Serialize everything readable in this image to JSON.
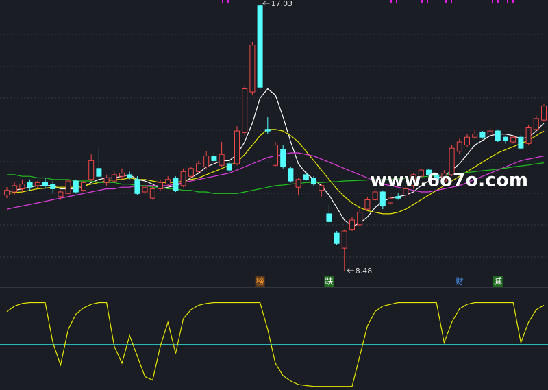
{
  "watermark": "www.6o7o.com",
  "chart_data": [
    {
      "type": "candlestick",
      "ylim": [
        8.04,
        17.14
      ],
      "up_color": "#f04848",
      "down_color": "#54ffff",
      "open": [
        10.9,
        11.0,
        11.1,
        11.3,
        11.2,
        11.3,
        11.25,
        10.85,
        10.95,
        11.35,
        11.05,
        11.4,
        11.75,
        11.3,
        11.35,
        11.5,
        11.55,
        11.4,
        11.0,
        10.8,
        11.1,
        11.25,
        11.45,
        11.2,
        11.5,
        11.65,
        11.8,
        12.15,
        11.85,
        11.9,
        11.9,
        12.9,
        14.2,
        16.95,
        13.0,
        11.85,
        12.35,
        11.75,
        11.15,
        11.55,
        11.45,
        11.05,
        10.3,
        9.68,
        9.2,
        9.8,
        9.95,
        10.45,
        10.75,
        11.0,
        10.65,
        10.85,
        10.9,
        11.2,
        11.5,
        11.7,
        11.55,
        11.35,
        11.55,
        12.3,
        12.5,
        12.75,
        12.9,
        12.85,
        12.95,
        12.75,
        12.6,
        12.75,
        12.55,
        13.0,
        13.3
      ],
      "high": [
        11.15,
        11.3,
        11.4,
        11.4,
        11.35,
        11.45,
        11.35,
        11.05,
        11.45,
        11.4,
        11.35,
        12.2,
        12.4,
        11.55,
        11.65,
        11.75,
        11.65,
        11.5,
        11.2,
        11.2,
        11.4,
        11.5,
        11.5,
        11.75,
        11.8,
        12.0,
        12.3,
        12.25,
        12.6,
        11.95,
        13.1,
        14.4,
        15.8,
        17.03,
        13.4,
        12.6,
        12.5,
        11.8,
        11.45,
        11.65,
        11.5,
        11.25,
        10.6,
        9.75,
        9.8,
        10.2,
        10.45,
        10.85,
        11.1,
        11.05,
        10.85,
        10.95,
        11.2,
        11.6,
        11.75,
        11.75,
        11.6,
        11.7,
        12.5,
        12.7,
        12.85,
        13.0,
        12.95,
        13.1,
        13.0,
        12.8,
        12.8,
        12.85,
        13.15,
        13.45,
        13.8
      ],
      "low": [
        10.8,
        10.9,
        11.0,
        11.05,
        11.1,
        11.1,
        10.95,
        10.75,
        10.9,
        10.95,
        11.0,
        11.35,
        11.4,
        11.2,
        11.3,
        11.4,
        11.4,
        10.9,
        10.9,
        10.75,
        11.05,
        11.2,
        11.0,
        11.15,
        11.45,
        11.6,
        11.75,
        11.9,
        11.8,
        11.65,
        11.85,
        12.8,
        14.1,
        14.2,
        12.85,
        11.8,
        11.75,
        11.3,
        10.9,
        11.35,
        11.2,
        10.85,
        10.0,
        9.3,
        8.48,
        9.75,
        9.9,
        10.4,
        10.7,
        10.45,
        10.6,
        10.75,
        10.8,
        11.1,
        11.45,
        11.5,
        11.35,
        11.3,
        11.5,
        12.2,
        12.45,
        12.7,
        12.7,
        12.8,
        12.6,
        12.55,
        12.55,
        12.35,
        12.5,
        12.95,
        13.25
      ],
      "close": [
        11.05,
        11.2,
        11.25,
        11.15,
        11.3,
        11.2,
        11.1,
        11.0,
        11.35,
        11.0,
        11.3,
        12.0,
        11.5,
        11.45,
        11.55,
        11.6,
        11.45,
        10.95,
        11.15,
        11.1,
        11.3,
        11.4,
        11.05,
        11.65,
        11.75,
        11.9,
        12.15,
        12.0,
        12.2,
        11.7,
        12.95,
        14.3,
        15.7,
        14.35,
        12.95,
        12.5,
        11.8,
        11.35,
        11.4,
        11.4,
        11.25,
        11.2,
        10.05,
        9.35,
        9.75,
        10.1,
        10.35,
        10.75,
        11.0,
        10.55,
        10.8,
        10.8,
        11.1,
        11.55,
        11.7,
        11.55,
        11.4,
        11.6,
        12.4,
        12.6,
        12.75,
        12.85,
        12.75,
        12.95,
        12.65,
        12.65,
        12.75,
        12.4,
        13.05,
        13.35,
        13.75
      ],
      "lines": [
        {
          "color": "#ffffff",
          "values": [
            11.0,
            11.05,
            11.1,
            11.15,
            11.2,
            11.2,
            11.2,
            11.1,
            11.1,
            11.1,
            11.15,
            11.3,
            11.4,
            11.45,
            11.45,
            11.5,
            11.55,
            11.4,
            11.35,
            11.25,
            11.1,
            11.15,
            11.2,
            11.3,
            11.45,
            11.6,
            11.8,
            11.9,
            12.0,
            12.0,
            12.2,
            12.6,
            13.2,
            14.0,
            14.3,
            14.1,
            13.4,
            12.6,
            11.9,
            11.6,
            11.4,
            11.2,
            10.9,
            10.5,
            10.1,
            9.9,
            10.0,
            10.2,
            10.5,
            10.7,
            10.8,
            10.85,
            10.9,
            11.0,
            11.2,
            11.35,
            11.45,
            11.5,
            11.7,
            11.9,
            12.2,
            12.5,
            12.65,
            12.8,
            12.85,
            12.85,
            12.8,
            12.7,
            12.75,
            12.95,
            13.2
          ]
        },
        {
          "color": "#e8e800",
          "values": [
            10.95,
            10.98,
            11.0,
            11.05,
            11.1,
            11.12,
            11.15,
            11.15,
            11.15,
            11.15,
            11.2,
            11.25,
            11.3,
            11.35,
            11.4,
            11.4,
            11.45,
            11.4,
            11.4,
            11.35,
            11.3,
            11.3,
            11.3,
            11.35,
            11.4,
            11.45,
            11.55,
            11.65,
            11.75,
            11.85,
            11.95,
            12.2,
            12.5,
            12.8,
            13.0,
            13.0,
            12.95,
            12.8,
            12.6,
            12.3,
            12.0,
            11.7,
            11.4,
            11.1,
            10.85,
            10.65,
            10.5,
            10.4,
            10.35,
            10.3,
            10.3,
            10.35,
            10.45,
            10.6,
            10.75,
            10.9,
            11.05,
            11.2,
            11.35,
            11.5,
            11.65,
            11.8,
            11.95,
            12.1,
            12.25,
            12.35,
            12.45,
            12.55,
            12.65,
            12.8,
            12.95
          ]
        },
        {
          "color": "#e040e0",
          "values": [
            10.45,
            10.5,
            10.55,
            10.6,
            10.65,
            10.7,
            10.75,
            10.8,
            10.85,
            10.9,
            10.95,
            11.0,
            11.05,
            11.1,
            11.1,
            11.15,
            11.15,
            11.2,
            11.2,
            11.2,
            11.2,
            11.2,
            11.25,
            11.3,
            11.35,
            11.4,
            11.45,
            11.5,
            11.55,
            11.6,
            11.7,
            11.8,
            11.9,
            12.0,
            12.1,
            12.15,
            12.2,
            12.25,
            12.25,
            12.2,
            12.15,
            12.05,
            11.95,
            11.85,
            11.75,
            11.65,
            11.55,
            11.45,
            11.35,
            11.25,
            11.2,
            11.15,
            11.1,
            11.05,
            11.0,
            11.0,
            11.05,
            11.1,
            11.15,
            11.2,
            11.3,
            11.4,
            11.5,
            11.6,
            11.7,
            11.8,
            11.9,
            12.0,
            12.05,
            12.1,
            12.15
          ]
        },
        {
          "color": "#20c020",
          "values": [
            11.55,
            11.55,
            11.5,
            11.5,
            11.45,
            11.45,
            11.4,
            11.4,
            11.4,
            11.35,
            11.35,
            11.35,
            11.3,
            11.3,
            11.3,
            11.25,
            11.25,
            11.2,
            11.2,
            11.15,
            11.15,
            11.1,
            11.1,
            11.05,
            11.05,
            11.0,
            11.0,
            10.95,
            10.95,
            10.95,
            10.95,
            11.0,
            11.05,
            11.1,
            11.15,
            11.2,
            11.22,
            11.25,
            11.27,
            11.3,
            11.3,
            11.3,
            11.32,
            11.33,
            11.35,
            11.36,
            11.37,
            11.38,
            11.39,
            11.4,
            11.4,
            11.42,
            11.44,
            11.46,
            11.48,
            11.5,
            11.52,
            11.55,
            11.58,
            11.6,
            11.62,
            11.65,
            11.68,
            11.7,
            11.73,
            11.76,
            11.8,
            11.83,
            11.86,
            11.9,
            11.93
          ]
        }
      ],
      "markers": [
        {
          "text": "榜",
          "index": 33,
          "color": "#ff9a30",
          "box": "#5a3a1a"
        },
        {
          "text": "跌",
          "index": 42,
          "color": "#ffffff",
          "box": "#1f6a1f"
        },
        {
          "text": "财",
          "index": 59,
          "color": "#4a9aff",
          "box": null
        },
        {
          "text": "减",
          "index": 64,
          "color": "#ffffff",
          "box": "#1f6a1f"
        }
      ]
    },
    {
      "type": "line",
      "ylim": [
        0,
        100
      ],
      "level": 48,
      "level_color": "#2ccfcf",
      "color": "#e8e800",
      "values": [
        85,
        91,
        94,
        95,
        95,
        95,
        50,
        25,
        65,
        82,
        89,
        93,
        95,
        95,
        46,
        27,
        58,
        35,
        12,
        8,
        46,
        73,
        38,
        77,
        87,
        92,
        94,
        95,
        95,
        95,
        95,
        95,
        95,
        95,
        65,
        27,
        13,
        7,
        3,
        2,
        1,
        1,
        1,
        1,
        1,
        1,
        35,
        69,
        85,
        91,
        93,
        95,
        95,
        95,
        95,
        95,
        95,
        50,
        73,
        88,
        93,
        95,
        95,
        95,
        95,
        95,
        95,
        50,
        73,
        87,
        92
      ]
    }
  ]
}
